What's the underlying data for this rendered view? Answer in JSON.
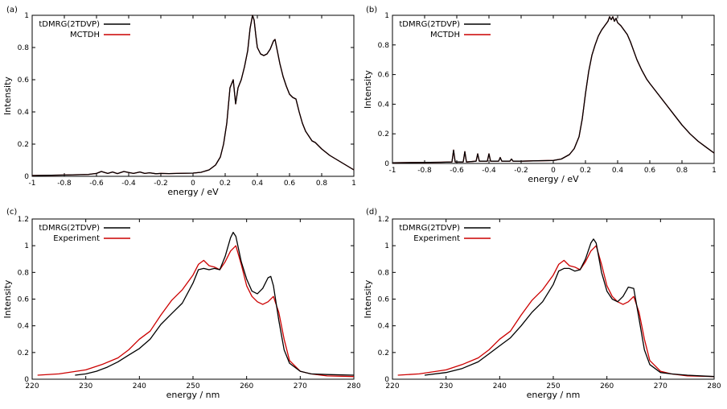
{
  "colors": {
    "tdmrg": "#000000",
    "mctdh": "#cc0000",
    "experiment": "#cc0000"
  },
  "chart_data": [
    {
      "panel_label": "(a)",
      "type": "line",
      "xlabel": "energy / eV",
      "ylabel": "Intensity",
      "xlim": [
        -1,
        1
      ],
      "ylim": [
        0,
        1
      ],
      "xticks": [
        -1,
        -0.8,
        -0.6,
        -0.4,
        -0.2,
        0,
        0.2,
        0.4,
        0.6,
        0.8,
        1
      ],
      "yticks": [
        0,
        0.2,
        0.4,
        0.6,
        0.8,
        1
      ],
      "legend_position": "top-left",
      "series": [
        {
          "name": "tDMRG(2TDVP)",
          "color": "#000000",
          "x": [
            -1.0,
            -0.8,
            -0.65,
            -0.6,
            -0.57,
            -0.53,
            -0.5,
            -0.47,
            -0.43,
            -0.4,
            -0.37,
            -0.33,
            -0.3,
            -0.27,
            -0.23,
            -0.2,
            -0.15,
            -0.1,
            0,
            0.05,
            0.1,
            0.14,
            0.17,
            0.19,
            0.21,
            0.23,
            0.25,
            0.265,
            0.28,
            0.3,
            0.32,
            0.34,
            0.355,
            0.37,
            0.38,
            0.39,
            0.4,
            0.42,
            0.44,
            0.46,
            0.48,
            0.5,
            0.51,
            0.52,
            0.54,
            0.56,
            0.58,
            0.6,
            0.62,
            0.64,
            0.66,
            0.68,
            0.7,
            0.72,
            0.74,
            0.76,
            0.78,
            0.8,
            0.85,
            0.9,
            0.95,
            1.0
          ],
          "y": [
            0.005,
            0.008,
            0.012,
            0.018,
            0.03,
            0.018,
            0.027,
            0.017,
            0.03,
            0.024,
            0.018,
            0.027,
            0.018,
            0.022,
            0.016,
            0.018,
            0.017,
            0.018,
            0.02,
            0.025,
            0.04,
            0.07,
            0.12,
            0.2,
            0.33,
            0.55,
            0.6,
            0.45,
            0.55,
            0.6,
            0.68,
            0.78,
            0.92,
            1.0,
            0.97,
            0.88,
            0.8,
            0.76,
            0.75,
            0.76,
            0.79,
            0.84,
            0.85,
            0.8,
            0.7,
            0.62,
            0.56,
            0.51,
            0.49,
            0.48,
            0.4,
            0.33,
            0.28,
            0.25,
            0.22,
            0.21,
            0.19,
            0.17,
            0.13,
            0.1,
            0.07,
            0.04
          ]
        },
        {
          "name": "MCTDH",
          "color": "#cc0000",
          "x": [
            -1.0,
            -0.8,
            -0.65,
            -0.6,
            -0.57,
            -0.53,
            -0.5,
            -0.47,
            -0.43,
            -0.4,
            -0.37,
            -0.33,
            -0.3,
            -0.27,
            -0.23,
            -0.2,
            -0.15,
            -0.1,
            0,
            0.05,
            0.1,
            0.14,
            0.17,
            0.19,
            0.21,
            0.23,
            0.25,
            0.265,
            0.28,
            0.3,
            0.32,
            0.34,
            0.355,
            0.37,
            0.38,
            0.39,
            0.4,
            0.42,
            0.44,
            0.46,
            0.48,
            0.5,
            0.51,
            0.52,
            0.54,
            0.56,
            0.58,
            0.6,
            0.62,
            0.64,
            0.66,
            0.68,
            0.7,
            0.72,
            0.74,
            0.76,
            0.78,
            0.8,
            0.85,
            0.9,
            0.95,
            1.0
          ],
          "y": [
            0.005,
            0.008,
            0.012,
            0.018,
            0.03,
            0.018,
            0.027,
            0.017,
            0.03,
            0.024,
            0.018,
            0.027,
            0.018,
            0.022,
            0.016,
            0.018,
            0.017,
            0.018,
            0.02,
            0.025,
            0.04,
            0.07,
            0.12,
            0.2,
            0.33,
            0.55,
            0.6,
            0.45,
            0.55,
            0.6,
            0.68,
            0.78,
            0.92,
            1.0,
            0.97,
            0.88,
            0.8,
            0.76,
            0.75,
            0.76,
            0.79,
            0.84,
            0.85,
            0.8,
            0.7,
            0.62,
            0.56,
            0.51,
            0.49,
            0.48,
            0.4,
            0.33,
            0.28,
            0.25,
            0.22,
            0.21,
            0.19,
            0.17,
            0.13,
            0.1,
            0.07,
            0.04
          ]
        }
      ]
    },
    {
      "panel_label": "(b)",
      "type": "line",
      "xlabel": "energy / eV",
      "ylabel": "Intensity",
      "xlim": [
        -1,
        1
      ],
      "ylim": [
        0,
        1
      ],
      "xticks": [
        -1,
        -0.8,
        -0.6,
        -0.4,
        -0.2,
        0,
        0.2,
        0.4,
        0.6,
        0.8,
        1
      ],
      "yticks": [
        0,
        0.2,
        0.4,
        0.6,
        0.8,
        1
      ],
      "legend_position": "top-left",
      "series": [
        {
          "name": "tDMRG(2TDVP)",
          "color": "#000000",
          "x": [
            -1.0,
            -0.7,
            -0.63,
            -0.62,
            -0.61,
            -0.56,
            -0.55,
            -0.54,
            -0.48,
            -0.47,
            -0.46,
            -0.41,
            -0.4,
            -0.39,
            -0.34,
            -0.33,
            -0.32,
            -0.27,
            -0.26,
            -0.25,
            -0.2,
            -0.1,
            0,
            0.05,
            0.1,
            0.13,
            0.16,
            0.18,
            0.2,
            0.22,
            0.24,
            0.26,
            0.28,
            0.3,
            0.32,
            0.34,
            0.35,
            0.36,
            0.37,
            0.38,
            0.39,
            0.4,
            0.42,
            0.44,
            0.46,
            0.48,
            0.5,
            0.52,
            0.55,
            0.58,
            0.6,
            0.65,
            0.7,
            0.75,
            0.8,
            0.85,
            0.9,
            0.95,
            1.0
          ],
          "y": [
            0.005,
            0.008,
            0.01,
            0.09,
            0.01,
            0.01,
            0.08,
            0.01,
            0.015,
            0.065,
            0.015,
            0.015,
            0.065,
            0.015,
            0.015,
            0.04,
            0.015,
            0.015,
            0.03,
            0.015,
            0.015,
            0.018,
            0.02,
            0.03,
            0.06,
            0.1,
            0.18,
            0.3,
            0.47,
            0.62,
            0.73,
            0.8,
            0.86,
            0.9,
            0.93,
            0.96,
            0.99,
            0.97,
            0.99,
            0.96,
            0.98,
            0.95,
            0.93,
            0.9,
            0.87,
            0.82,
            0.76,
            0.7,
            0.63,
            0.57,
            0.54,
            0.47,
            0.4,
            0.33,
            0.26,
            0.2,
            0.15,
            0.11,
            0.07
          ]
        },
        {
          "name": "MCTDH",
          "color": "#cc0000",
          "x": [
            -1.0,
            -0.7,
            -0.63,
            -0.62,
            -0.61,
            -0.56,
            -0.55,
            -0.54,
            -0.48,
            -0.47,
            -0.46,
            -0.41,
            -0.4,
            -0.39,
            -0.34,
            -0.33,
            -0.32,
            -0.27,
            -0.26,
            -0.25,
            -0.2,
            -0.1,
            0,
            0.05,
            0.1,
            0.13,
            0.16,
            0.18,
            0.2,
            0.22,
            0.24,
            0.26,
            0.28,
            0.3,
            0.32,
            0.34,
            0.35,
            0.36,
            0.37,
            0.38,
            0.39,
            0.4,
            0.42,
            0.44,
            0.46,
            0.48,
            0.5,
            0.52,
            0.55,
            0.58,
            0.6,
            0.65,
            0.7,
            0.75,
            0.8,
            0.85,
            0.9,
            0.95,
            1.0
          ],
          "y": [
            0.005,
            0.008,
            0.01,
            0.09,
            0.01,
            0.01,
            0.08,
            0.01,
            0.015,
            0.065,
            0.015,
            0.015,
            0.065,
            0.015,
            0.015,
            0.04,
            0.015,
            0.015,
            0.03,
            0.015,
            0.015,
            0.018,
            0.02,
            0.03,
            0.06,
            0.1,
            0.18,
            0.3,
            0.47,
            0.62,
            0.73,
            0.8,
            0.86,
            0.9,
            0.93,
            0.96,
            0.99,
            0.97,
            0.99,
            0.96,
            0.98,
            0.95,
            0.93,
            0.9,
            0.87,
            0.82,
            0.76,
            0.7,
            0.63,
            0.57,
            0.54,
            0.47,
            0.4,
            0.33,
            0.26,
            0.2,
            0.15,
            0.11,
            0.07
          ]
        }
      ]
    },
    {
      "panel_label": "(c)",
      "type": "line",
      "xlabel": "energy / nm",
      "ylabel": "Intensity",
      "xlim": [
        220,
        280
      ],
      "ylim": [
        0,
        1.2
      ],
      "xticks": [
        220,
        230,
        240,
        250,
        260,
        270,
        280
      ],
      "yticks": [
        0,
        0.2,
        0.4,
        0.6,
        0.8,
        1,
        1.2
      ],
      "legend_position": "top-left",
      "series": [
        {
          "name": "tDMRG(2TDVP)",
          "color": "#000000",
          "x": [
            228,
            230,
            232,
            234,
            236,
            238,
            240,
            242,
            244,
            246,
            248,
            250,
            251,
            252,
            253,
            254,
            255,
            256,
            257,
            257.5,
            258,
            259,
            260,
            261,
            262,
            263,
            264,
            264.5,
            265,
            266,
            267,
            268,
            270,
            272,
            275,
            280
          ],
          "y": [
            0.03,
            0.04,
            0.06,
            0.09,
            0.13,
            0.18,
            0.23,
            0.3,
            0.41,
            0.49,
            0.57,
            0.72,
            0.82,
            0.83,
            0.82,
            0.83,
            0.82,
            0.92,
            1.06,
            1.1,
            1.07,
            0.88,
            0.75,
            0.66,
            0.64,
            0.68,
            0.76,
            0.77,
            0.7,
            0.44,
            0.22,
            0.12,
            0.06,
            0.04,
            0.035,
            0.03
          ]
        },
        {
          "name": "Experiment",
          "color": "#cc0000",
          "x": [
            221,
            225,
            230,
            233,
            236,
            238,
            240,
            242,
            244,
            246,
            248,
            250,
            251,
            252,
            253,
            254,
            255,
            256,
            257,
            258,
            259,
            260,
            261,
            262,
            263,
            264,
            265,
            266,
            267,
            268,
            270,
            272,
            275,
            280
          ],
          "y": [
            0.03,
            0.04,
            0.07,
            0.11,
            0.16,
            0.22,
            0.3,
            0.36,
            0.48,
            0.59,
            0.67,
            0.78,
            0.86,
            0.89,
            0.85,
            0.84,
            0.82,
            0.88,
            0.96,
            1.0,
            0.86,
            0.7,
            0.62,
            0.58,
            0.56,
            0.58,
            0.62,
            0.5,
            0.3,
            0.14,
            0.06,
            0.04,
            0.025,
            0.02
          ]
        }
      ]
    },
    {
      "panel_label": "(d)",
      "type": "line",
      "xlabel": "energy / nm",
      "ylabel": "Intensity",
      "xlim": [
        220,
        280
      ],
      "ylim": [
        0,
        1.2
      ],
      "xticks": [
        220,
        230,
        240,
        250,
        260,
        270,
        280
      ],
      "yticks": [
        0,
        0.2,
        0.4,
        0.6,
        0.8,
        1,
        1.2
      ],
      "legend_position": "top-left",
      "series": [
        {
          "name": "tDMRG(2TDVP)",
          "color": "#000000",
          "x": [
            226,
            230,
            233,
            236,
            238,
            240,
            242,
            244,
            246,
            248,
            250,
            251,
            252,
            253,
            254,
            255,
            256,
            257,
            257.5,
            258,
            259,
            260,
            261,
            262,
            263,
            264,
            265,
            266,
            267,
            268,
            270,
            272,
            275,
            280
          ],
          "y": [
            0.03,
            0.05,
            0.08,
            0.13,
            0.19,
            0.25,
            0.31,
            0.4,
            0.5,
            0.58,
            0.71,
            0.81,
            0.83,
            0.83,
            0.81,
            0.82,
            0.9,
            1.02,
            1.05,
            1.02,
            0.8,
            0.66,
            0.6,
            0.58,
            0.62,
            0.69,
            0.68,
            0.45,
            0.22,
            0.11,
            0.05,
            0.04,
            0.03,
            0.02
          ]
        },
        {
          "name": "Experiment",
          "color": "#cc0000",
          "x": [
            221,
            225,
            230,
            233,
            236,
            238,
            240,
            242,
            244,
            246,
            248,
            250,
            251,
            252,
            253,
            254,
            255,
            256,
            257,
            258,
            259,
            260,
            261,
            262,
            263,
            264,
            265,
            266,
            267,
            268,
            270,
            272,
            275,
            280
          ],
          "y": [
            0.03,
            0.04,
            0.07,
            0.11,
            0.16,
            0.22,
            0.3,
            0.36,
            0.48,
            0.59,
            0.67,
            0.78,
            0.86,
            0.89,
            0.85,
            0.84,
            0.82,
            0.88,
            0.96,
            1.0,
            0.86,
            0.7,
            0.62,
            0.58,
            0.56,
            0.58,
            0.62,
            0.5,
            0.3,
            0.14,
            0.06,
            0.04,
            0.025,
            0.02
          ]
        }
      ]
    }
  ]
}
